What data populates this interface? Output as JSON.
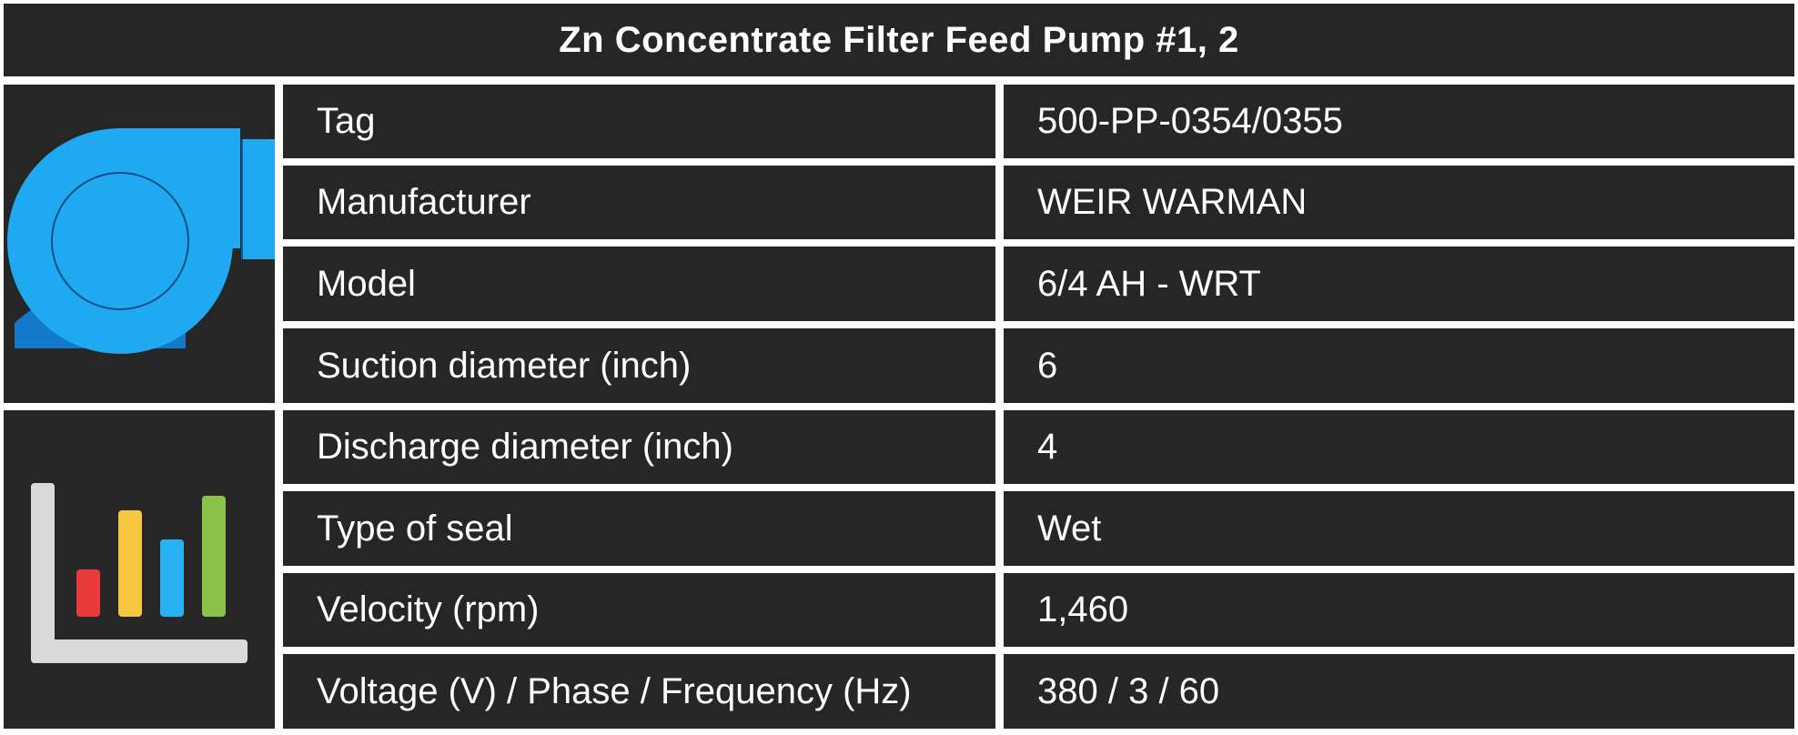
{
  "title": "Zn Concentrate Filter Feed Pump #1, 2",
  "icons": {
    "pump": "centrifugal-pump-icon",
    "chart": "bar-chart-icon"
  },
  "colors": {
    "cell_background": "#262626",
    "separator": "#ffffff",
    "text": "#ffffff",
    "pump_blue": "#1fa9f0",
    "pump_dark_blue": "#1479c9",
    "bar_red": "#e83a3a",
    "bar_yellow": "#f7c740",
    "bar_blue": "#29b2f3",
    "bar_green": "#8bc24a",
    "axis_gray": "#d9d9d9"
  },
  "rows": [
    {
      "label": "Tag",
      "value": "500-PP-0354/0355"
    },
    {
      "label": "Manufacturer",
      "value": "WEIR WARMAN"
    },
    {
      "label": "Model",
      "value": "6/4 AH - WRT"
    },
    {
      "label": "Suction diameter (inch)",
      "value": "6"
    },
    {
      "label": "Discharge diameter (inch)",
      "value": "4"
    },
    {
      "label": "Type of seal",
      "value": "Wet"
    },
    {
      "label": "Velocity (rpm)",
      "value": "1,460"
    },
    {
      "label": "Voltage (V) / Phase / Frequency (Hz)",
      "value": "380 / 3 / 60"
    }
  ]
}
